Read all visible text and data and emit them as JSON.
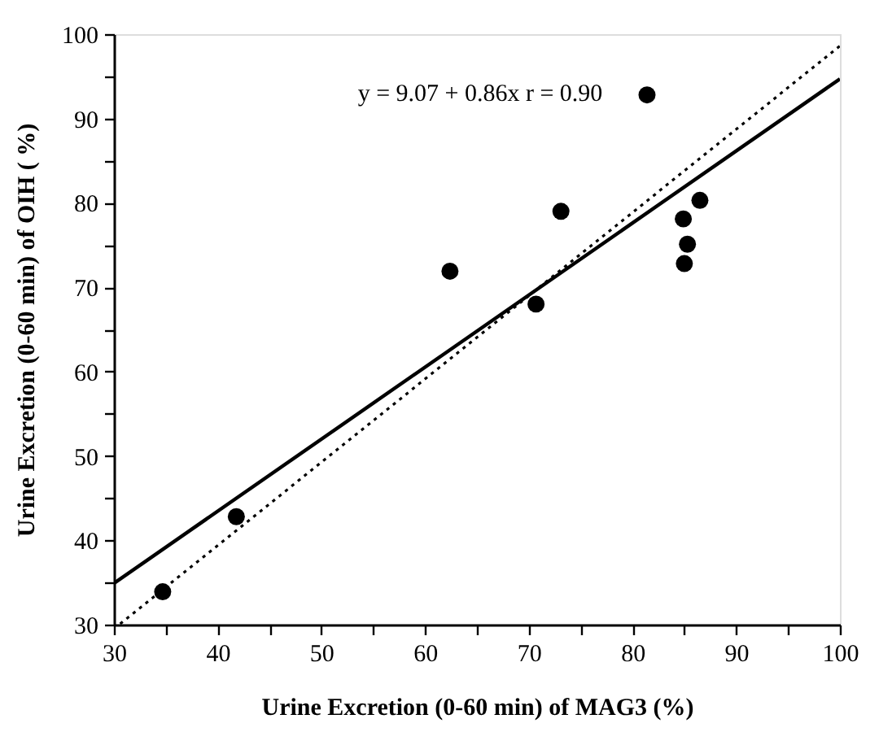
{
  "chart_data": {
    "type": "scatter",
    "xlabel": "Urine Excretion (0-60 min) of MAG3  (%)",
    "ylabel": "Urine Excretion (0-60 min) of OIH ( %)",
    "annotations": [
      "y = 9.07 + 0.86x   r = 0.90"
    ],
    "xlim": [
      30,
      100
    ],
    "ylim": [
      30,
      100
    ],
    "xticks": [
      30,
      {
        "value": 35,
        "label": null
      },
      40,
      {
        "value": 45,
        "label": null
      },
      50,
      {
        "value": 55,
        "label": null
      },
      60,
      {
        "value": 65,
        "label": null
      },
      70,
      {
        "value": 75,
        "label": null
      },
      80,
      {
        "value": 85,
        "label": null
      },
      90,
      {
        "value": 95,
        "label": null
      },
      100
    ],
    "yticks": [
      30,
      {
        "value": 35,
        "label": null
      },
      40,
      {
        "value": 45,
        "label": null
      },
      50,
      {
        "value": 55,
        "label": null
      },
      60,
      {
        "value": 65,
        "label": null
      },
      70,
      {
        "value": 75,
        "label": null
      },
      80,
      {
        "value": 85,
        "label": null
      },
      90,
      {
        "value": 95,
        "label": null
      },
      100
    ],
    "grid": false,
    "series": [
      {
        "type": "scatter",
        "marker": "circle",
        "color": "#000000",
        "x": [
          34.7,
          41.8,
          62.4,
          70.7,
          73.1,
          81.4,
          84.9,
          85.3,
          85.0,
          86.5
        ],
        "values": [
          33.9,
          42.8,
          71.9,
          68.0,
          79.0,
          92.8,
          78.1,
          75.1,
          72.8,
          80.3
        ]
      },
      {
        "type": "line",
        "color": "#000000",
        "line_style": "solid",
        "x": [
          30,
          100
        ],
        "values": [
          34.9,
          94.7
        ]
      },
      {
        "type": "line",
        "color": "#000000",
        "line_style": "dotted",
        "x": [
          30.6,
          100
        ],
        "values": [
          30.1,
          98.6
        ]
      }
    ]
  }
}
